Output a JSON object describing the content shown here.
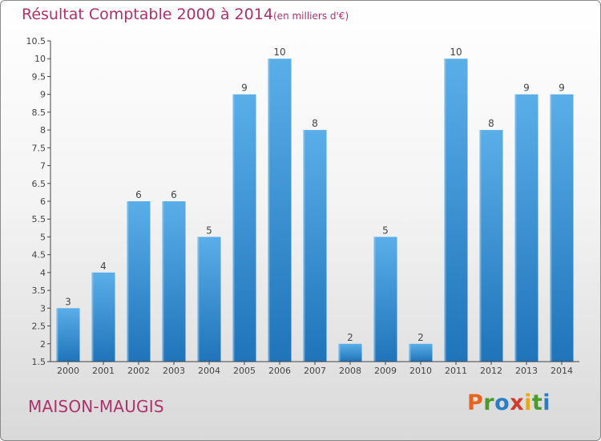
{
  "header": {
    "title": "Résultat Comptable 2000 à 2014",
    "subtitle": "(en milliers d'€)"
  },
  "footer": {
    "location": "MAISON-MAUGIS",
    "logo_text": "Proxiti"
  },
  "colors": {
    "title": "#b0306c",
    "bar_top": "#5aaee8",
    "bar_bottom": "#1f74ba",
    "logo_letters": [
      "#e8641e",
      "#4a9a2c",
      "#2a7ec8",
      "#d33a2c",
      "#e8a81e",
      "#4a9a2c",
      "#2a7ec8"
    ]
  },
  "chart_data": {
    "type": "bar",
    "categories": [
      "2000",
      "2001",
      "2002",
      "2003",
      "2004",
      "2005",
      "2006",
      "2007",
      "2008",
      "2009",
      "2010",
      "2011",
      "2012",
      "2013",
      "2014"
    ],
    "values": [
      3,
      4,
      6,
      6,
      5,
      9,
      10,
      8,
      2,
      5,
      2,
      10,
      8,
      9,
      9
    ],
    "ylim": [
      1.5,
      10.5
    ],
    "yticks": [
      "1.5",
      "2",
      "2.5",
      "3",
      "3.5",
      "4",
      "4.5",
      "5",
      "5.5",
      "6",
      "6.5",
      "7",
      "7.5",
      "8",
      "8.5",
      "9",
      "9.5",
      "10",
      "10.5"
    ],
    "grid": false,
    "data_labels": true
  }
}
